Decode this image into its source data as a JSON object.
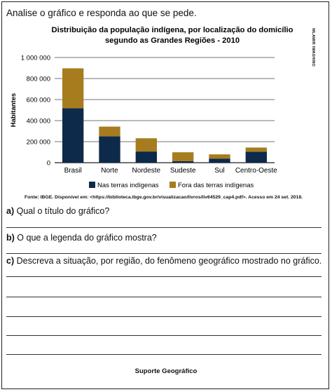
{
  "intro": "Analise o gráfico e responda ao que se pede.",
  "side_credit": "WLAMIR IWASHINO",
  "chart_data": {
    "type": "bar",
    "stacked": true,
    "title_line1": "Distribuição da população indígena, por localização do domicílio",
    "title_line2": "segundo as Grandes Regiões - 2010",
    "ylabel": "Habitantes",
    "xlabel": "",
    "ylim": [
      0,
      1000000
    ],
    "yticks": [
      0,
      200000,
      400000,
      600000,
      800000,
      1000000
    ],
    "ytick_labels": [
      "0",
      "200 000",
      "400 000",
      "600 000",
      "800 000",
      "1 000 000"
    ],
    "grid": true,
    "categories": [
      "Brasil",
      "Norte",
      "Nordeste",
      "Sudeste",
      "Sul",
      "Centro-Oeste"
    ],
    "series": [
      {
        "name": "Nas terras indígenas",
        "color": "#0d2a4a",
        "values": [
          517000,
          251000,
          106000,
          15000,
          39000,
          104000
        ]
      },
      {
        "name": "Fora das terras indígenas",
        "color": "#a67c1e",
        "values": [
          380000,
          92000,
          126000,
          84000,
          40000,
          40000
        ]
      }
    ],
    "legend_position": "bottom"
  },
  "source_text": "Fonte: IBGE. Disponível em: <https://biblioteca.ibge.gov.br/visualizacao/livros/liv64529_cap4.pdf>. Acesso em 24 set. 2018.",
  "questions": [
    {
      "label": "a)",
      "text": "Qual o título do gráfico?"
    },
    {
      "label": "b)",
      "text": "O que a legenda do gráfico mostra?"
    },
    {
      "label": "c)",
      "text": "Descreva a situação, por região, do fenômeno geográfico mostrado no gráfico."
    }
  ],
  "footer": "Suporte Geográfico"
}
